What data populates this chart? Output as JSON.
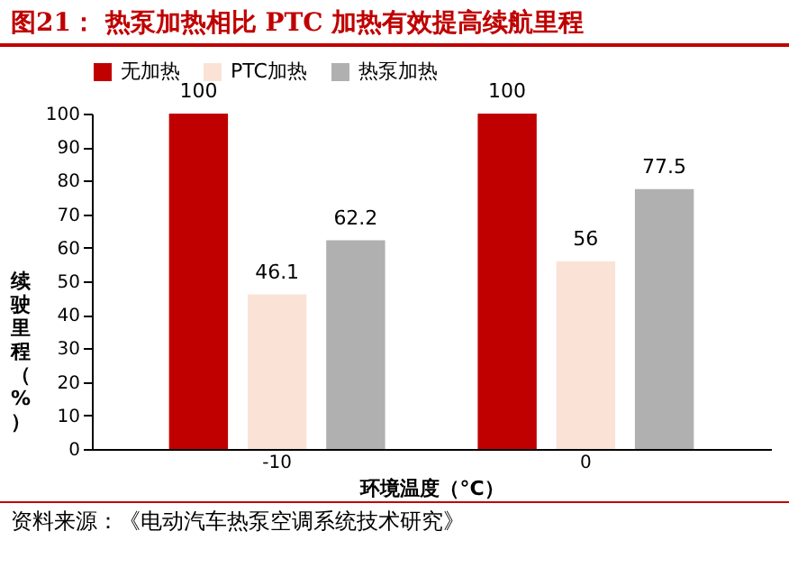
{
  "chart_data": {
    "type": "bar",
    "title": "图21：  热泵加热相比 PTC 加热有效提高续航里程",
    "xlabel": "环境温度（°C）",
    "ylabel": "续驶里程（%）",
    "categories": [
      "-10",
      "0"
    ],
    "series": [
      {
        "name": "无加热",
        "color": "#c00000",
        "values": [
          100,
          100
        ]
      },
      {
        "name": "PTC加热",
        "color": "#fae3d6",
        "values": [
          46.1,
          56
        ]
      },
      {
        "name": "热泵加热",
        "color": "#b0b0b0",
        "values": [
          62.2,
          77.5
        ]
      }
    ],
    "ylim": [
      0,
      100
    ],
    "yticks": [
      0,
      10,
      20,
      30,
      40,
      50,
      60,
      70,
      80,
      90,
      100
    ],
    "data_labels": true,
    "legend": "top",
    "grid": false,
    "annotations": [
      "资料来源：《电动汽车热泵空调系统技术研究》"
    ]
  }
}
